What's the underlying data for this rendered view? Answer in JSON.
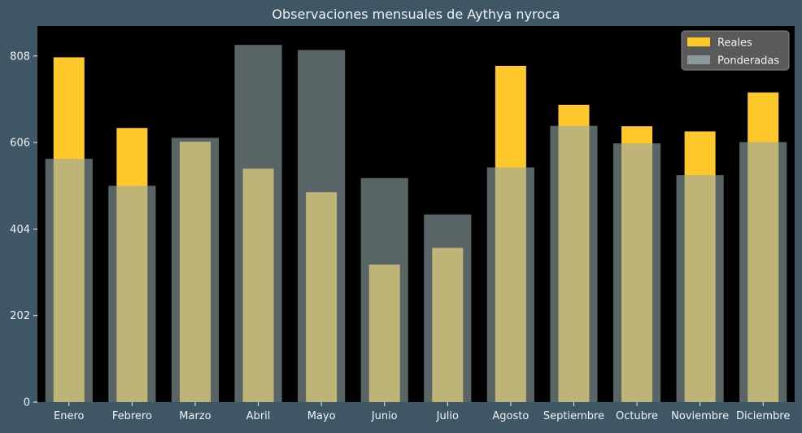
{
  "chart_data": {
    "type": "bar",
    "title": "Observaciones mensuales de Aythya nyroca",
    "xlabel": "",
    "ylabel": "",
    "categories": [
      "Enero",
      "Febrero",
      "Marzo",
      "Abril",
      "Mayo",
      "Junio",
      "Julio",
      "Agosto",
      "Septiembre",
      "Octubre",
      "Noviembre",
      "Diciembre"
    ],
    "series": [
      {
        "name": "Reales",
        "color": "#ffc82a",
        "values": [
          805,
          640,
          608,
          545,
          490,
          321,
          360,
          785,
          694,
          644,
          632,
          723
        ]
      },
      {
        "name": "Ponderadas",
        "color": "#94a6ab",
        "values": [
          568,
          505,
          617,
          834,
          822,
          523,
          438,
          548,
          645,
          604,
          530,
          607
        ]
      }
    ],
    "yticks": [
      0,
      202,
      404,
      606,
      808
    ],
    "ylim": [
      0,
      878
    ],
    "grid": false,
    "legend_position": "top-right",
    "colors": {
      "figure_background": "#3f5665",
      "plot_background": "#000000",
      "text": "#eef3f4",
      "legend_background": "#5a5a5a"
    }
  }
}
